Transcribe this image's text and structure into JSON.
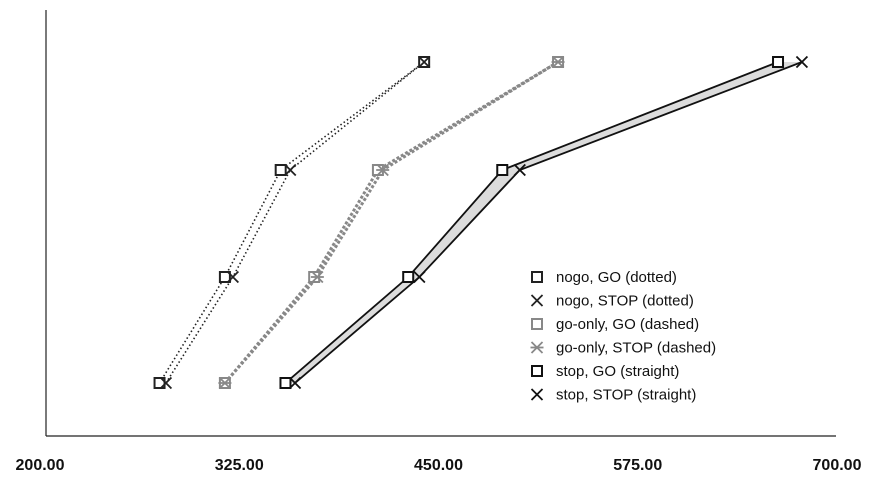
{
  "chart_data": {
    "type": "line",
    "title": "",
    "xlabel": "",
    "ylabel": "",
    "xlim": [
      200,
      700
    ],
    "x_ticks": [
      "200.00",
      "325.00",
      "450.00",
      "575.00",
      "700.00"
    ],
    "grid": false,
    "legend_position": "bottom-right",
    "series": [
      {
        "name": "nogo, GO (dotted)",
        "x": [
          275,
          316,
          351,
          441
        ],
        "y_level": [
          1,
          2,
          3,
          4
        ],
        "marker": "square",
        "line": "dotted",
        "color": "#222222"
      },
      {
        "name": "nogo, STOP (dotted)",
        "x": [
          279,
          321,
          357,
          441
        ],
        "y_level": [
          1,
          2,
          3,
          4
        ],
        "marker": "x",
        "line": "dotted",
        "color": "#222222"
      },
      {
        "name": "go-only, GO (dashed)",
        "x": [
          316,
          372,
          412,
          525
        ],
        "y_level": [
          1,
          2,
          3,
          4
        ],
        "marker": "square",
        "line": "dashed",
        "color": "#888888"
      },
      {
        "name": "go-only, STOP (dashed)",
        "x": [
          316,
          374,
          415,
          525
        ],
        "y_level": [
          1,
          2,
          3,
          4
        ],
        "marker": "asterisk",
        "line": "dashed",
        "color": "#888888"
      },
      {
        "name": "stop, GO (straight)",
        "x": [
          354,
          431,
          490,
          663
        ],
        "y_level": [
          1,
          2,
          3,
          4
        ],
        "marker": "square",
        "line": "solid",
        "color": "#111111"
      },
      {
        "name": "stop, STOP (straight)",
        "x": [
          360,
          438,
          501,
          678
        ],
        "y_level": [
          1,
          2,
          3,
          4
        ],
        "marker": "x",
        "line": "solid",
        "color": "#111111"
      }
    ]
  }
}
